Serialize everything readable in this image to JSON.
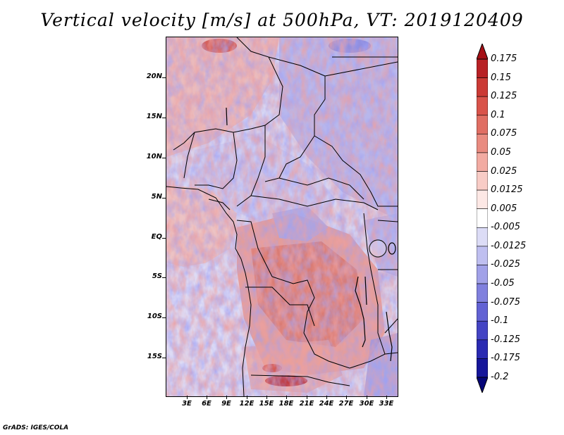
{
  "title": "Vertical velocity [m/s] at 500hPa, VT: 2019120409",
  "credit": "GrADS: IGES/COLA",
  "map": {
    "lat_labels": [
      "20N",
      "15N",
      "10N",
      "5N",
      "EQ",
      "5S",
      "10S",
      "15S"
    ],
    "lon_labels": [
      "3E",
      "6E",
      "9E",
      "12E",
      "15E",
      "18E",
      "21E",
      "24E",
      "27E",
      "30E",
      "33E"
    ],
    "lat_range": [
      -19.5,
      25
    ],
    "lon_range": [
      0,
      34.5
    ]
  },
  "colorbar": {
    "labels": [
      "0.175",
      "0.15",
      "0.125",
      "0.1",
      "0.075",
      "0.05",
      "0.025",
      "0.0125",
      "0.005",
      "-0.005",
      "-0.0125",
      "-0.025",
      "-0.05",
      "-0.075",
      "-0.1",
      "-0.125",
      "-0.175",
      "-0.2"
    ],
    "colors": [
      "#a50f15",
      "#b82125",
      "#cb3a35",
      "#d9534a",
      "#e06e63",
      "#e98b80",
      "#f2aba2",
      "#f8ccc6",
      "#fde8e5",
      "#ffffff",
      "#dcdcf6",
      "#bfbff0",
      "#a1a1e8",
      "#8080de",
      "#6262d4",
      "#4444c4",
      "#2a2ab2",
      "#16169a",
      "#050578"
    ]
  }
}
